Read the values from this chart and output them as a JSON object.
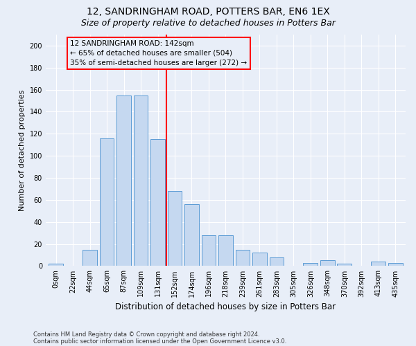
{
  "title1": "12, SANDRINGHAM ROAD, POTTERS BAR, EN6 1EX",
  "title2": "Size of property relative to detached houses in Potters Bar",
  "xlabel": "Distribution of detached houses by size in Potters Bar",
  "ylabel": "Number of detached properties",
  "bar_labels": [
    "0sqm",
    "22sqm",
    "44sqm",
    "65sqm",
    "87sqm",
    "109sqm",
    "131sqm",
    "152sqm",
    "174sqm",
    "196sqm",
    "218sqm",
    "239sqm",
    "261sqm",
    "283sqm",
    "305sqm",
    "326sqm",
    "348sqm",
    "370sqm",
    "392sqm",
    "413sqm",
    "435sqm"
  ],
  "bar_heights": [
    2,
    0,
    15,
    116,
    155,
    155,
    115,
    68,
    56,
    28,
    28,
    15,
    12,
    8,
    0,
    3,
    5,
    2,
    0,
    4,
    3
  ],
  "bar_color": "#c5d8f0",
  "bar_edge_color": "#5b9bd5",
  "annotation_line1": "12 SANDRINGHAM ROAD: 142sqm",
  "annotation_line2": "← 65% of detached houses are smaller (504)",
  "annotation_line3": "35% of semi-detached houses are larger (272) →",
  "ylim": [
    0,
    210
  ],
  "yticks": [
    0,
    20,
    40,
    60,
    80,
    100,
    120,
    140,
    160,
    180,
    200
  ],
  "footer1": "Contains HM Land Registry data © Crown copyright and database right 2024.",
  "footer2": "Contains public sector information licensed under the Open Government Licence v3.0.",
  "bg_color": "#e8eef8",
  "grid_color": "#ffffff",
  "title1_fontsize": 10,
  "title2_fontsize": 9,
  "xlabel_fontsize": 8.5,
  "ylabel_fontsize": 8,
  "tick_fontsize": 7,
  "footer_fontsize": 6,
  "annot_fontsize": 7.5
}
